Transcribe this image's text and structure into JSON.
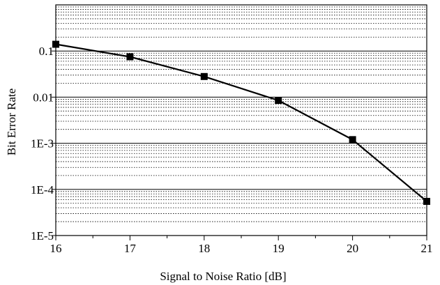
{
  "chart_data": {
    "type": "line",
    "xlabel": "Signal to Noise Ratio [dB]",
    "ylabel": "Bit Error Rate",
    "xlim": [
      16,
      21
    ],
    "ylim": [
      1e-05,
      1
    ],
    "yscale": "log",
    "x_ticks": [
      {
        "value": 16,
        "label": "16"
      },
      {
        "value": 17,
        "label": "17"
      },
      {
        "value": 18,
        "label": "18"
      },
      {
        "value": 19,
        "label": "19"
      },
      {
        "value": 20,
        "label": "20"
      },
      {
        "value": 21,
        "label": "21"
      }
    ],
    "y_ticks": [
      {
        "value": 0.1,
        "label": "0.1"
      },
      {
        "value": 0.01,
        "label": "0.01"
      },
      {
        "value": 0.001,
        "label": "1E-3"
      },
      {
        "value": 0.0001,
        "label": "1E-4"
      },
      {
        "value": 1e-05,
        "label": "1E-5"
      }
    ],
    "grid": true,
    "series": [
      {
        "x": [
          16,
          17,
          18,
          19,
          20,
          21
        ],
        "y": [
          0.14,
          0.075,
          0.028,
          0.0085,
          0.0012,
          5.5e-05
        ]
      }
    ],
    "colors": {
      "line": "#000000",
      "marker": "#000000",
      "grid": "#000000"
    }
  }
}
